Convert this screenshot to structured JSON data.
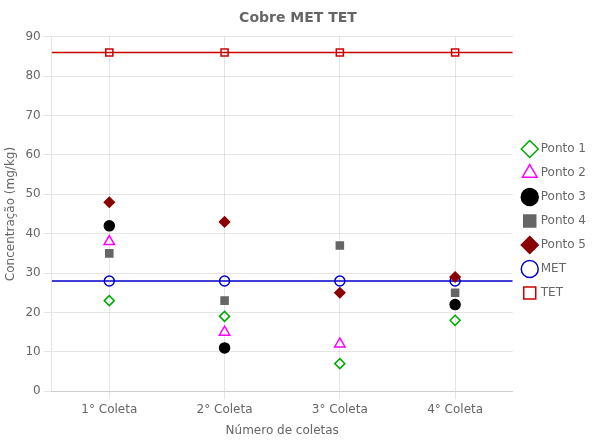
{
  "chart_data": {
    "type": "scatter",
    "title": "Cobre MET TET",
    "xlabel": "Número de coletas",
    "ylabel": "Concentração (mg/kg)",
    "categories": [
      "1° Coleta",
      "2° Coleta",
      "3° Coleta",
      "4° Coleta"
    ],
    "series": [
      {
        "name": "MET",
        "type": "line",
        "color": "#0000cc",
        "marker": "circle-open",
        "values": [
          28.0,
          28.0,
          28.0,
          28.0
        ]
      },
      {
        "name": "TET",
        "type": "line",
        "color": "#cc0000",
        "marker": "square-open",
        "values": [
          86.0,
          86.0,
          86.0,
          86.0
        ]
      },
      {
        "name": "Ponto 1",
        "type": "scatter",
        "color": "#00aa00",
        "marker": "diamond-open",
        "values": [
          23,
          19,
          7,
          18
        ]
      },
      {
        "name": "Ponto 2",
        "type": "scatter",
        "color": "#ff00ff",
        "marker": "triangle-open",
        "values": [
          38,
          15,
          12,
          null
        ]
      },
      {
        "name": "Ponto 3",
        "type": "scatter",
        "color": "#000000",
        "marker": "circle",
        "values": [
          42,
          11,
          null,
          22
        ]
      },
      {
        "name": "Ponto 4",
        "type": "scatter",
        "color": "#666666",
        "marker": "square",
        "values": [
          35,
          23,
          37,
          25
        ]
      },
      {
        "name": "Ponto 5",
        "type": "scatter",
        "color": "#8b0000",
        "marker": "diamond",
        "values": [
          48,
          43,
          25,
          29
        ]
      }
    ],
    "ylim": [
      0,
      90
    ],
    "yticks": [
      0,
      10,
      20,
      30,
      40,
      50,
      60,
      70,
      80,
      90
    ],
    "grid": true,
    "legend": "right"
  }
}
